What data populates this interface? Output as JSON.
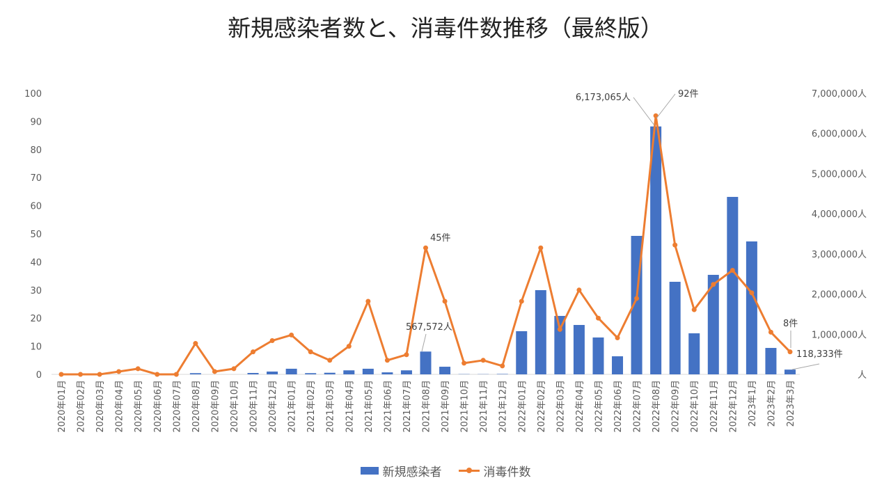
{
  "chart_data": {
    "type": "bar+line",
    "title": "新規感染者数と、消毒件数推移（最終版）",
    "categories": [
      "2020年01月",
      "2020年02月",
      "2020年03月",
      "2020年04月",
      "2020年05月",
      "2020年06月",
      "2020年07月",
      "2020年08月",
      "2020年09月",
      "2020年10月",
      "2020年11月",
      "2020年12月",
      "2021年01月",
      "2021年02月",
      "2021年03月",
      "2021年04月",
      "2021年05月",
      "2021年06月",
      "2021年07月",
      "2021年08月",
      "2021年09月",
      "2021年10月",
      "2021年11月",
      "2021年12月",
      "2022年01月",
      "2022年02月",
      "2022年03月",
      "2022年04月",
      "2022年05月",
      "2022年06月",
      "2022年07月",
      "2022年08月",
      "2022年09月",
      "2022年10月",
      "2022年11月",
      "2022年12月",
      "2023年1月",
      "2023年2月",
      "2023年3月"
    ],
    "series": [
      {
        "name": "新規感染者",
        "type": "bar",
        "axis": "right",
        "color": "#4472c4",
        "values": [
          0,
          0,
          0,
          0,
          0,
          0,
          0,
          30000,
          0,
          0,
          35000,
          70000,
          140000,
          30000,
          40000,
          100000,
          140000,
          50000,
          100000,
          567572,
          190000,
          6000,
          5000,
          10000,
          1075000,
          2097000,
          1455000,
          1230000,
          918000,
          450000,
          3448000,
          6173065,
          2305000,
          1022000,
          2478000,
          4419000,
          3310000,
          658000,
          118333
        ]
      },
      {
        "name": "消毒件数",
        "type": "line",
        "axis": "left",
        "color": "#ed7d31",
        "values": [
          0,
          0,
          0,
          1,
          2,
          0,
          0,
          11,
          1,
          2,
          8,
          12,
          14,
          8,
          5,
          10,
          26,
          5,
          7,
          45,
          26,
          4,
          5,
          3,
          26,
          45,
          16,
          30,
          20,
          13,
          27,
          92,
          46,
          23,
          32,
          37,
          29,
          15,
          8
        ]
      }
    ],
    "left_axis": {
      "min": 0,
      "max": 100,
      "step": 10,
      "ticks": [
        "0",
        "10",
        "20",
        "30",
        "40",
        "50",
        "60",
        "70",
        "80",
        "90",
        "100"
      ]
    },
    "right_axis": {
      "min": 0,
      "max": 7000000,
      "step": 1000000,
      "ticks": [
        "人",
        "1,000,000人",
        "2,000,000人",
        "3,000,000人",
        "4,000,000人",
        "5,000,000人",
        "6,000,000人",
        "7,000,000人"
      ]
    },
    "annotations": [
      {
        "text": "45件",
        "series": "消毒件数",
        "index": 19
      },
      {
        "text": "567,572人",
        "series": "新規感染者",
        "index": 19
      },
      {
        "text": "6,173,065人",
        "series": "新規感染者",
        "index": 31
      },
      {
        "text": "92件",
        "series": "消毒件数",
        "index": 31
      },
      {
        "text": "8件",
        "series": "消毒件数",
        "index": 38
      },
      {
        "text": "118,333件",
        "series": "新規感染者",
        "index": 38
      }
    ],
    "legend": {
      "position": "bottom",
      "items": [
        "新規感染者",
        "消毒件数"
      ]
    },
    "grid": false
  }
}
